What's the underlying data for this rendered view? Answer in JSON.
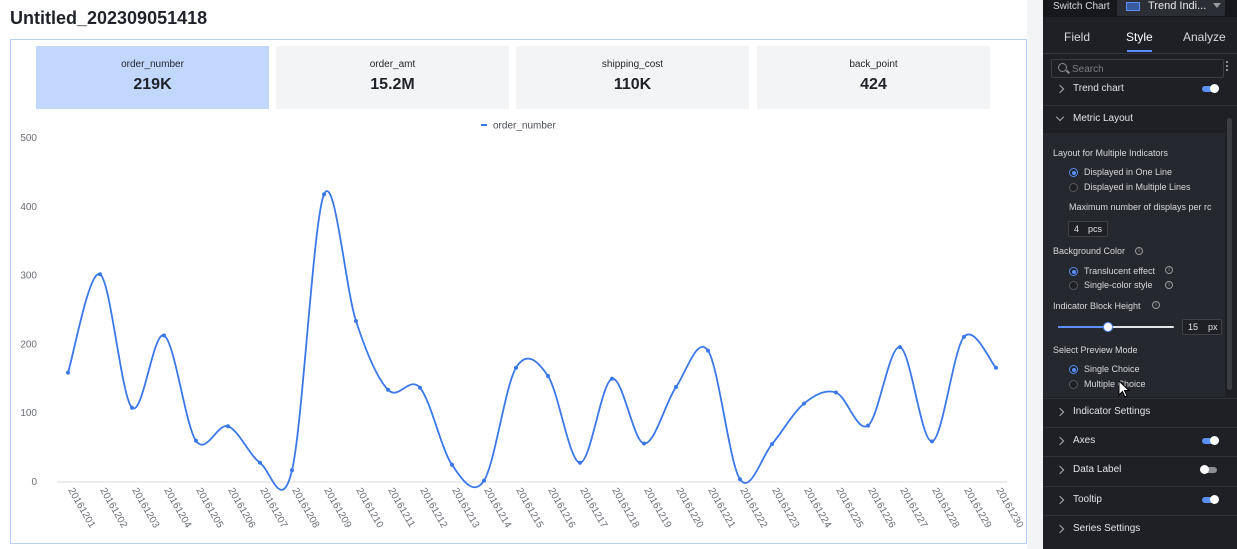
{
  "page": {
    "title": "Untitled_202309051418"
  },
  "metrics": [
    {
      "label": "order_number",
      "value": "219K",
      "active": true
    },
    {
      "label": "order_amt",
      "value": "15.2M",
      "active": false
    },
    {
      "label": "shipping_cost",
      "value": "110K",
      "active": false
    },
    {
      "label": "back_point",
      "value": "424",
      "active": false
    }
  ],
  "chart_data": {
    "type": "line",
    "title": "",
    "legend": {
      "position": "top-center",
      "entries": [
        "order_number"
      ]
    },
    "xlabel": "",
    "ylabel": "",
    "ylim": [
      0,
      500
    ],
    "yticks": [
      0,
      100,
      200,
      300,
      400,
      500
    ],
    "grid": false,
    "smooth": true,
    "series_color": "#3b78e7",
    "categories": [
      "20161201",
      "20161202",
      "20161203",
      "20161204",
      "20161205",
      "20161206",
      "20161207",
      "20161208",
      "20161209",
      "20161210",
      "20161211",
      "20161212",
      "20161213",
      "20161214",
      "20161215",
      "20161216",
      "20161217",
      "20161218",
      "20161219",
      "20161220",
      "20161221",
      "20161222",
      "20161223",
      "20161224",
      "20161225",
      "20161226",
      "20161227",
      "20161228",
      "20161229",
      "20161230"
    ],
    "series": [
      {
        "name": "order_number",
        "values": [
          159,
          302,
          108,
          213,
          60,
          81,
          28,
          17,
          418,
          234,
          134,
          137,
          25,
          2,
          166,
          154,
          28,
          150,
          56,
          138,
          191,
          4,
          55,
          114,
          130,
          82,
          196,
          59,
          211,
          166
        ]
      }
    ]
  },
  "panel": {
    "switch_label": "Switch Chart",
    "chart_type": "Trend Indi...",
    "tabs": [
      "Field",
      "Style",
      "Analyze"
    ],
    "active_tab": "Style",
    "search_placeholder": "Search",
    "rows": {
      "trend_chart": "Trend chart",
      "metric_layout": "Metric Layout",
      "indicator_settings": "Indicator Settings",
      "axes": "Axes",
      "data_label": "Data Label",
      "tooltip": "Tooltip",
      "series_settings": "Series Settings"
    },
    "toggles": {
      "trend_chart": true,
      "axes": true,
      "data_label": false,
      "tooltip": true
    },
    "metric_layout": {
      "layout_heading": "Layout for Multiple Indicators",
      "layout_options": [
        "Displayed in One Line",
        "Displayed in Multiple Lines"
      ],
      "max_label": "Maximum number of displays per rc",
      "max_value": "4",
      "max_unit": "pcs",
      "bg_heading": "Background Color",
      "bg_options": [
        "Translucent effect",
        "Single-color style"
      ],
      "height_heading": "Indicator Block Height",
      "height_value": "15",
      "height_unit": "px",
      "height_slider_fraction": 0.43,
      "preview_heading": "Select Preview Mode",
      "preview_options": [
        "Single Choice",
        "Multiple Choice"
      ]
    },
    "accent_color": "#5b8ff9"
  }
}
